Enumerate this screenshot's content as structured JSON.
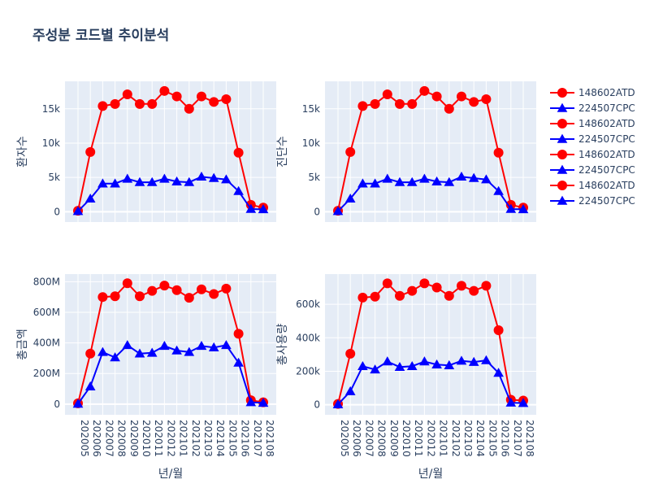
{
  "chart_data": {
    "type": "line",
    "title": "주성분 코드별 추이분석",
    "x": [
      "202005",
      "202006",
      "202007",
      "202008",
      "202009",
      "202010",
      "202011",
      "202012",
      "202101",
      "202102",
      "202103",
      "202104",
      "202105",
      "202106",
      "202107",
      "202108"
    ],
    "xlabel": "년/월",
    "legend": {
      "placement": "right",
      "entries": [
        "148602ATD",
        "224507CPC",
        "148602ATD",
        "224507CPC",
        "148602ATD",
        "224507CPC",
        "148602ATD",
        "224507CPC"
      ]
    },
    "colors": {
      "148602ATD": "#ff0000",
      "224507CPC": "#0000ff"
    },
    "markers": {
      "148602ATD": "circle",
      "224507CPC": "triangle-up"
    },
    "grid": true,
    "panels": [
      {
        "ylabel": "환자수",
        "ylim": [
          -1500,
          19000
        ],
        "yticks": [
          0,
          5000,
          10000,
          15000
        ],
        "ytick_labels": [
          "0",
          "5k",
          "10k",
          "15k"
        ],
        "series": [
          {
            "name": "148602ATD",
            "values": [
              150,
              8700,
              15400,
              15700,
              17100,
              15700,
              15700,
              17600,
              16800,
              15000,
              16800,
              16000,
              16400,
              8600,
              1000,
              600
            ]
          },
          {
            "name": "224507CPC",
            "values": [
              80,
              1900,
              4100,
              4100,
              4800,
              4300,
              4300,
              4800,
              4400,
              4300,
              5100,
              4900,
              4700,
              3000,
              400,
              350
            ]
          }
        ]
      },
      {
        "ylabel": "진단수",
        "ylim": [
          -1500,
          19000
        ],
        "yticks": [
          0,
          5000,
          10000,
          15000
        ],
        "ytick_labels": [
          "0",
          "5k",
          "10k",
          "15k"
        ],
        "series": [
          {
            "name": "148602ATD",
            "values": [
              150,
              8700,
              15400,
              15700,
              17100,
              15700,
              15700,
              17600,
              16800,
              15000,
              16800,
              16000,
              16400,
              8600,
              1000,
              600
            ]
          },
          {
            "name": "224507CPC",
            "values": [
              80,
              1900,
              4100,
              4100,
              4800,
              4300,
              4300,
              4800,
              4400,
              4300,
              5100,
              4900,
              4700,
              3000,
              400,
              350
            ]
          }
        ]
      },
      {
        "ylabel": "총금액",
        "ylim": [
          -70000000,
          850000000
        ],
        "yticks": [
          0,
          200000000,
          400000000,
          600000000,
          800000000
        ],
        "ytick_labels": [
          "0",
          "200M",
          "400M",
          "600M",
          "800M"
        ],
        "series": [
          {
            "name": "148602ATD",
            "values": [
              5000000,
              330000000,
              700000000,
              705000000,
              790000000,
              705000000,
              740000000,
              775000000,
              745000000,
              695000000,
              750000000,
              720000000,
              755000000,
              460000000,
              25000000,
              12000000
            ]
          },
          {
            "name": "224507CPC",
            "values": [
              2000000,
              115000000,
              340000000,
              305000000,
              385000000,
              330000000,
              335000000,
              380000000,
              350000000,
              340000000,
              380000000,
              370000000,
              385000000,
              270000000,
              12000000,
              8000000
            ]
          }
        ]
      },
      {
        "ylabel": "총사용량",
        "ylim": [
          -60000,
          780000
        ],
        "yticks": [
          0,
          200000,
          400000,
          600000
        ],
        "ytick_labels": [
          "0",
          "200k",
          "400k",
          "600k"
        ],
        "series": [
          {
            "name": "148602ATD",
            "values": [
              5000,
              305000,
              640000,
              645000,
              725000,
              650000,
              680000,
              725000,
              700000,
              650000,
              710000,
              680000,
              710000,
              445000,
              30000,
              25000
            ]
          },
          {
            "name": "224507CPC",
            "values": [
              2000,
              80000,
              230000,
              210000,
              258000,
              225000,
              230000,
              258000,
              240000,
              235000,
              262000,
              255000,
              265000,
              190000,
              12000,
              10000
            ]
          }
        ]
      }
    ]
  }
}
